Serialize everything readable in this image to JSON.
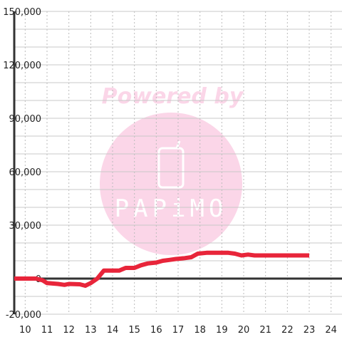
{
  "chart_data": {
    "type": "line",
    "title": "",
    "xlabel": "",
    "ylabel": "",
    "xlim": [
      9.5,
      24.5
    ],
    "ylim": [
      -20000,
      150000
    ],
    "x_ticks": [
      10,
      11,
      12,
      13,
      14,
      15,
      16,
      17,
      18,
      19,
      20,
      21,
      22,
      23,
      24
    ],
    "y_ticks": [
      -20000,
      0,
      30000,
      60000,
      90000,
      120000,
      150000
    ],
    "y_tick_labels": [
      "-20,000",
      "0",
      "30,000",
      "60,000",
      "90,000",
      "120,000",
      "150,000"
    ],
    "grid": true,
    "series": [
      {
        "color": "#e8253a",
        "x": [
          9.5,
          10.0,
          10.5,
          10.8,
          11.0,
          11.5,
          11.8,
          12.0,
          12.5,
          12.75,
          13.0,
          13.3,
          13.6,
          14.0,
          14.3,
          14.6,
          15.0,
          15.3,
          15.6,
          16.0,
          16.3,
          16.6,
          16.9,
          17.3,
          17.6,
          17.9,
          18.3,
          18.6,
          18.9,
          19.3,
          19.6,
          19.9,
          20.2,
          20.5,
          21.0,
          22.0,
          23.0
        ],
        "y": [
          0,
          0,
          0,
          -1000,
          -2500,
          -3000,
          -3500,
          -3000,
          -3200,
          -4000,
          -2500,
          0,
          4500,
          4500,
          4500,
          6000,
          6000,
          7500,
          8500,
          9000,
          10000,
          10500,
          11000,
          11500,
          12000,
          14000,
          14500,
          14500,
          14500,
          14500,
          14000,
          13000,
          13500,
          13000,
          13000,
          13000,
          13000
        ]
      }
    ]
  },
  "watermark": {
    "top_text": "Powered by",
    "brand_text": "PAPiMO",
    "color": "#fbd6e8"
  }
}
